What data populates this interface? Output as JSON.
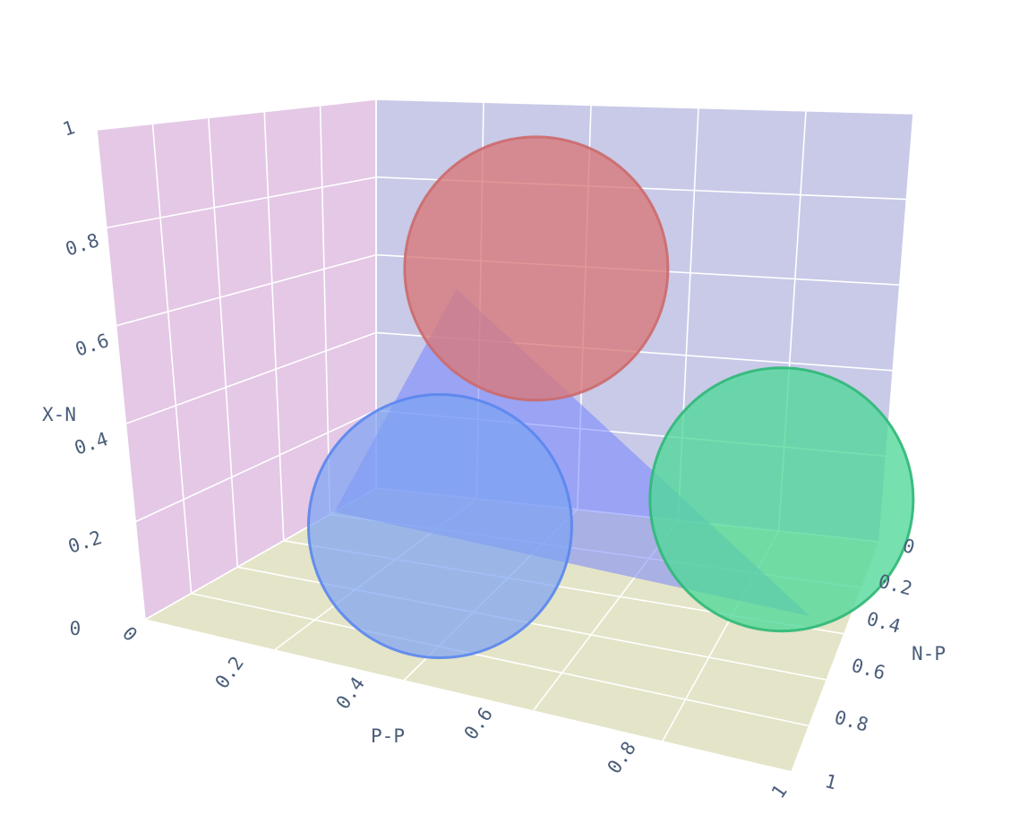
{
  "chart_data": {
    "type": "scatter3d",
    "axes": {
      "x": {
        "title": "P-P",
        "range": [
          0,
          1
        ],
        "ticks": [
          "0",
          "0.2",
          "0.4",
          "0.6",
          "0.8",
          "1"
        ]
      },
      "y": {
        "title": "N-P",
        "range": [
          0,
          1
        ],
        "ticks": [
          "0",
          "0.2",
          "0.4",
          "0.6",
          "0.8",
          "1"
        ]
      },
      "z": {
        "title": "X-N",
        "range": [
          0,
          1
        ],
        "ticks": [
          "0",
          "0.2",
          "0.4",
          "0.6",
          "0.8",
          "1"
        ]
      }
    },
    "planes": {
      "xz_wall": "#e4c8e6",
      "yz_wall": "#c8cae8",
      "floor": "#e4e4c8",
      "grid": "#ffffff"
    },
    "triangle": {
      "color": "#6b7bff",
      "opacity": 0.5,
      "vertices": [
        [
          0.93,
          0.52,
          0.82
        ],
        [
          0.18,
          0.0,
          0.0
        ],
        [
          0.35,
          0.93,
          0.0
        ]
      ]
    },
    "spheres": [
      {
        "name": "",
        "color": "#d9787a",
        "edge": "#cc6a6c",
        "opacity": 0.78,
        "center": [
          0.5,
          0.5,
          0.75
        ]
      },
      {
        "name": "",
        "color": "#4fd898",
        "edge": "#2fb877",
        "opacity": 0.78,
        "center": [
          0.45,
          0.9,
          0.3
        ]
      },
      {
        "name": "",
        "color": "#7ca2f2",
        "edge": "#5a86ee",
        "opacity": 0.7,
        "center": [
          0.9,
          0.45,
          0.3
        ]
      }
    ],
    "grid": true,
    "legend": "none"
  }
}
